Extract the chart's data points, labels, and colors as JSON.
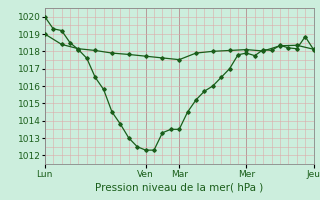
{
  "title": "",
  "xlabel": "Pression niveau de la mer( hPa )",
  "ylim": [
    1011.5,
    1020.5
  ],
  "yticks": [
    1012,
    1013,
    1014,
    1015,
    1016,
    1017,
    1018,
    1019,
    1020
  ],
  "bg_color": "#cceedd",
  "line_color": "#1a5e1a",
  "grid_color": "#ddaaaa",
  "day_labels": [
    "Lun",
    "Ven",
    "Mar",
    "Mer",
    "Jeu"
  ],
  "day_positions": [
    0,
    12,
    16,
    24,
    32
  ],
  "line1_x": [
    0,
    1,
    2,
    3,
    4,
    5,
    6,
    7,
    8,
    9,
    10,
    11,
    12,
    13,
    14,
    15,
    16,
    17,
    18,
    19,
    20,
    21,
    22,
    23,
    24,
    25,
    26,
    27,
    28,
    29,
    30,
    31,
    32
  ],
  "line1_y": [
    1020,
    1019.3,
    1019.2,
    1018.5,
    1018.1,
    1017.6,
    1016.5,
    1015.8,
    1014.5,
    1013.8,
    1013.0,
    1012.5,
    1012.3,
    1012.3,
    1013.3,
    1013.5,
    1013.5,
    1014.5,
    1015.2,
    1015.7,
    1016.0,
    1016.5,
    1017.0,
    1017.8,
    1017.9,
    1017.75,
    1018.1,
    1018.05,
    1018.35,
    1018.2,
    1018.15,
    1018.85,
    1018.1
  ],
  "line2_x": [
    0,
    2,
    4,
    6,
    8,
    10,
    12,
    14,
    16,
    18,
    20,
    22,
    24,
    26,
    28,
    30,
    32
  ],
  "line2_y": [
    1019.0,
    1018.4,
    1018.15,
    1018.05,
    1017.9,
    1017.82,
    1017.72,
    1017.62,
    1017.52,
    1017.9,
    1018.0,
    1018.05,
    1018.1,
    1018.02,
    1018.32,
    1018.35,
    1018.12
  ],
  "total_points": 33,
  "font_size_label": 7.5,
  "font_size_tick": 6.5,
  "figsize": [
    3.2,
    2.0
  ],
  "dpi": 100
}
